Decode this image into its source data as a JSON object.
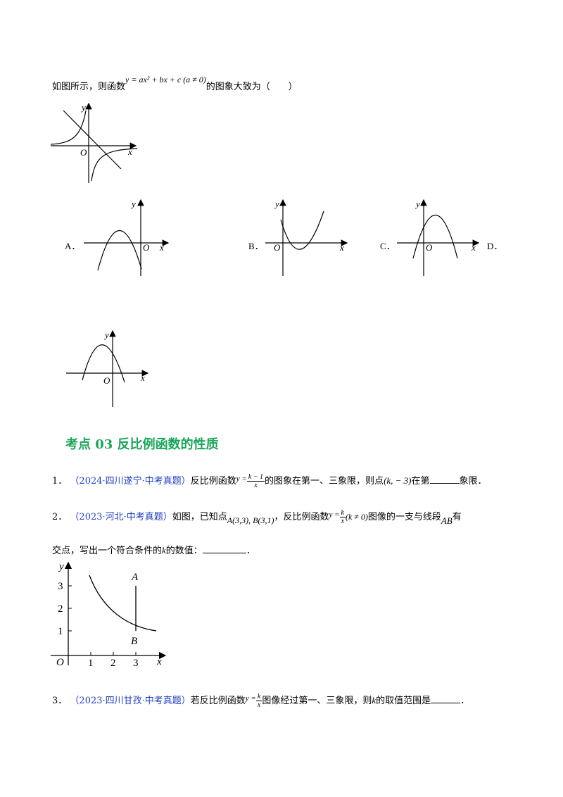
{
  "intro_question": {
    "prefix": "如图所示，则函数",
    "formula": "y = ax² + bx + c (a ≠ 0)",
    "suffix": "的图象大致为（　　）"
  },
  "options": {
    "a": "A．",
    "b": "B．",
    "c": "C．",
    "d": "D．"
  },
  "axes": {
    "x": "x",
    "y": "y",
    "o": "O"
  },
  "section_heading": "考点 03  反比例函数的性质",
  "q1": {
    "num": "1．",
    "source": "（2024·四川遂宁·中考真题）",
    "text1": "反比例函数",
    "y_eq": "y =",
    "frac_num": "k − 1",
    "frac_den": "x",
    "text2": "的图象在第一、三象限，则点",
    "point": "(k, − 3)",
    "text3": "在第",
    "text4": "象限．"
  },
  "q2": {
    "num": "2．",
    "source": "（2023·河北·中考真题）",
    "text1": "如图，已知点",
    "points": "A(3,3), B(3,1)",
    "text2": "，反比例函数",
    "y_eq": "y =",
    "frac_num": "k",
    "frac_den": "x",
    "cond": "(k ≠ 0)",
    "text3": "图像的一支与线段",
    "segment": "AB",
    "text4": "有",
    "line2": "交点，写出一个符合条件的",
    "k": "k",
    "line2b": "的数值：",
    "end": "．"
  },
  "q2_figure": {
    "y_ticks": [
      "1",
      "2",
      "3"
    ],
    "x_ticks": [
      "1",
      "2",
      "3"
    ],
    "label_a": "A",
    "label_b": "B"
  },
  "q3": {
    "num": "3．",
    "source": "（2023·四川甘孜·中考真题）",
    "text1": "若反比例函数",
    "y_eq": "y =",
    "frac_num": "k",
    "frac_den": "x",
    "text2": "图像经过第一、三象限，则",
    "k": "k",
    "text3": "的取值范围是",
    "end": "．"
  }
}
